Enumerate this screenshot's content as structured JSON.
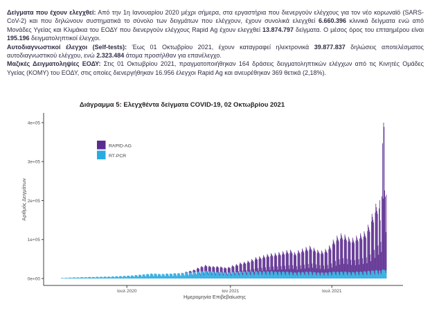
{
  "report": {
    "paragraphs": [
      {
        "segments": [
          {
            "t": "Δείγματα που έχουν ελεγχθεί:",
            "b": true
          },
          {
            "t": " Από την 1η Ιανουαρίου 2020 μέχρι σήμερα, στα εργαστήρια που διενεργούν ελέγχους για τον νέο κορωναϊό (SARS-CoV-2) και που δηλώνουν συστηματικά το σύνολο των δειγμάτων που ελέγχουν, έχουν συνολικά ελεγχθεί ",
            "b": false
          },
          {
            "t": "6.660.396",
            "b": true
          },
          {
            "t": " κλινικά δείγματα ενώ από Μονάδες Υγείας και Κλιμάκια του ΕΟΔΥ που διενεργούν ελέγχους Rapid Ag έχουν ελεγχθεί ",
            "b": false
          },
          {
            "t": "13.874.797",
            "b": true
          },
          {
            "t": " δείγματα.  Ο μέσος όρος του επταημέρου είναι ",
            "b": false
          },
          {
            "t": "195.196",
            "b": true
          },
          {
            "t": " δειγματοληπτικοί έλεγχοι.",
            "b": false
          }
        ]
      },
      {
        "segments": [
          {
            "t": "Αυτοδιαγνωστικοί έλεγχοι (Self-tests):",
            "b": true
          },
          {
            "t": " Έως 01 Οκτωβρίου 2021, έχουν καταγραφεί ηλεκτρονικά ",
            "b": false
          },
          {
            "t": "39.877.837",
            "b": true
          },
          {
            "t": " δηλώσεις αποτελέσματος αυτοδιαγνωστικού ελέγχου, ενώ ",
            "b": false
          },
          {
            "t": "2.323.484",
            "b": true
          },
          {
            "t": " άτομα προσήλθαν για επανέλεγχο.",
            "b": false
          }
        ]
      },
      {
        "segments": [
          {
            "t": "Μαζικές Δειγματοληψίες ΕΟΔΥ:",
            "b": true
          },
          {
            "t": " Στις 01 Οκτωβρίου 2021, πραγματοποιήθηκαν 164 δράσεις δειγματοληπτικών ελέγχων από τις Κινητές Ομάδες Υγείας (ΚΟΜΥ) του ΕΟΔΥ, στις οποίες διενεργήθηκαν 16.956 έλεγχοι Rapid Ag και ανευρέθηκαν 369 θετικά (2,18%).",
            "b": false
          }
        ]
      }
    ]
  },
  "chart": {
    "title": "Διάγραμμα 5: Ελεγχθέντα δείγματα COVID-19, 02 Οκτωβρίου 2021",
    "xlabel": "Ημερομηνία Επιβεβαίωσης",
    "ylabel": "Αριθμός Δειγμάτων"
  },
  "chart_data": {
    "type": "bar",
    "stacked": true,
    "grid": false,
    "title": "Διάγραμμα 5: Ελεγχθέντα δείγματα COVID-19, 02 Οκτωβρίου 2021",
    "xlabel": "Ημερομηνία Επιβεβαίωσης",
    "ylabel": "Αριθμός Δειγμάτων",
    "ylim": [
      0,
      400000
    ],
    "y_ticks": [
      {
        "label": "0e+00",
        "value": 0
      },
      {
        "label": "1e+05",
        "value": 100000
      },
      {
        "label": "2e+05",
        "value": 200000
      },
      {
        "label": "3e+05",
        "value": 300000
      },
      {
        "label": "4e+05",
        "value": 400000
      }
    ],
    "x_ticks": [
      {
        "label": "Ιουλ 2020",
        "day_index": 119
      },
      {
        "label": "Ιαν 2021",
        "day_index": 306
      },
      {
        "label": "Ιουλ 2021",
        "day_index": 489
      }
    ],
    "legend_position": "upper-left-inside",
    "series": [
      {
        "name": "RAPID-AG",
        "color": "#5B2C8F"
      },
      {
        "name": "RT-PCR",
        "color": "#29ABE2"
      }
    ],
    "unit": 1000,
    "weekly_peaks": {
      "rt_pcr": [
        1.5,
        2,
        2.5,
        3,
        3,
        3.5,
        3.5,
        4,
        4,
        4.5,
        4.5,
        5,
        5,
        5.5,
        6,
        6.5,
        7,
        7.5,
        8,
        9,
        10,
        11,
        12,
        13,
        13,
        12,
        12,
        13,
        13,
        14,
        14,
        15,
        16,
        16,
        17,
        18,
        19,
        20,
        19,
        18,
        17,
        17,
        16,
        16,
        17,
        17,
        18,
        18,
        18,
        18,
        19,
        19,
        19,
        19,
        19,
        18,
        18,
        18,
        18,
        17,
        16,
        17,
        17,
        18,
        18,
        17,
        16,
        16,
        16,
        17,
        18,
        18,
        18,
        18,
        17,
        17,
        18,
        18,
        19,
        20,
        21,
        22
      ],
      "rapid_ag": [
        0,
        0,
        0,
        0,
        0,
        0,
        0,
        0,
        0,
        0,
        0,
        0,
        0,
        0,
        0,
        0,
        0,
        0,
        0,
        0,
        0,
        0,
        0,
        0,
        0,
        0,
        0,
        0,
        0,
        0,
        0,
        0,
        1.5,
        4,
        6,
        10,
        13,
        15,
        14,
        14,
        15,
        14,
        13,
        14,
        17,
        20,
        23,
        25,
        28,
        32,
        36,
        38,
        41,
        44,
        46,
        48,
        50,
        52,
        55,
        57,
        52,
        56,
        60,
        63,
        66,
        62,
        58,
        56,
        60,
        68,
        82,
        92,
        98,
        95,
        90,
        88,
        92,
        98,
        102,
        118,
        145,
        170
      ]
    },
    "weekday_factors": {
      "rt_pcr": [
        0.9,
        1,
        0.97,
        0.94,
        0.9,
        0.6,
        0.45
      ],
      "rapid_ag": [
        0.88,
        1,
        0.95,
        0.9,
        0.86,
        0.42,
        0.3
      ]
    },
    "final_days": {
      "rt_pcr": [
        20,
        21,
        19,
        14,
        10,
        21,
        23,
        21,
        24,
        23,
        21,
        20,
        14,
        21
      ],
      "rapid_ag": [
        160,
        180,
        130,
        80,
        58,
        190,
        324,
        184,
        376,
        366,
        205,
        190,
        105,
        194
      ]
    }
  }
}
